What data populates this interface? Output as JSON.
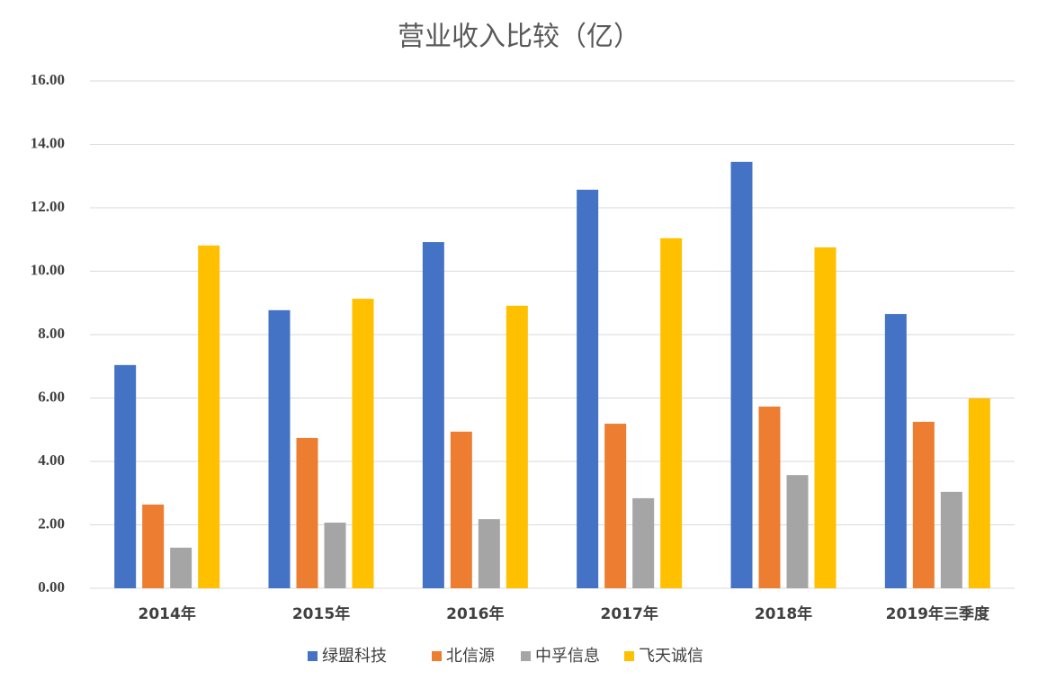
{
  "chart_data": {
    "type": "bar",
    "title": "营业收入比较（亿）",
    "categories": [
      "2014年",
      "2015年",
      "2016年",
      "2017年",
      "2018年",
      "2019年三季度"
    ],
    "series": [
      {
        "name": "绿盟科技",
        "color": "#4472c4",
        "values": [
          7.04,
          8.77,
          10.92,
          12.57,
          13.45,
          8.65
        ]
      },
      {
        "name": "北信源",
        "color": "#ed7d31",
        "values": [
          2.64,
          4.74,
          4.94,
          5.19,
          5.73,
          5.25
        ]
      },
      {
        "name": "中孚信息",
        "color": "#a5a5a5",
        "values": [
          1.28,
          2.07,
          2.18,
          2.84,
          3.57,
          3.04
        ]
      },
      {
        "name": "飞天诚信",
        "color": "#ffc000",
        "values": [
          10.81,
          9.13,
          8.91,
          11.04,
          10.75,
          5.99
        ]
      }
    ],
    "ylim": [
      0,
      16
    ],
    "yticks": [
      {
        "value": 0,
        "label": "0.00"
      },
      {
        "value": 2,
        "label": "2.00"
      },
      {
        "value": 4,
        "label": "4.00"
      },
      {
        "value": 6,
        "label": "6.00"
      },
      {
        "value": 8,
        "label": "8.00"
      },
      {
        "value": 10,
        "label": "10.00"
      },
      {
        "value": 12,
        "label": "12.00"
      },
      {
        "value": 14,
        "label": "14.00"
      },
      {
        "value": 16,
        "label": "16.00"
      }
    ],
    "grid": true,
    "legend": "bottom"
  }
}
